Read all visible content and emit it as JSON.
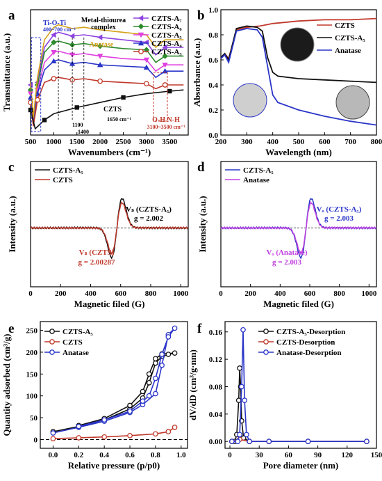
{
  "figure": {
    "panels": [
      "a",
      "b",
      "c",
      "d",
      "e",
      "f"
    ]
  },
  "chart_data": [
    {
      "panel": "a",
      "type": "line",
      "xlabel": "Wavenumbers (cm⁻¹)",
      "ylabel": "Transmittance (a.u.)",
      "xlim": [
        500,
        3900
      ],
      "ylim": [
        0,
        1
      ],
      "xticks": [
        "500",
        "1000",
        "1500",
        "2000",
        "2500",
        "3000",
        "3500"
      ],
      "series": [
        {
          "name": "CZTS-A₇",
          "color": "#8e44e0",
          "marker": "triangle-left",
          "points": [
            [
              500,
              0.4
            ],
            [
              560,
              0.12
            ],
            [
              650,
              0.42
            ],
            [
              800,
              0.7
            ],
            [
              1000,
              0.8
            ],
            [
              1100,
              0.82
            ],
            [
              1400,
              0.79
            ],
            [
              1650,
              0.8
            ],
            [
              2000,
              0.78
            ],
            [
              2500,
              0.76
            ],
            [
              3000,
              0.74
            ],
            [
              3200,
              0.64
            ],
            [
              3400,
              0.7
            ],
            [
              3800,
              0.7
            ]
          ]
        },
        {
          "name": "CZTS-A₆",
          "color": "#2e8b2e",
          "marker": "diamond",
          "points": [
            [
              500,
              0.36
            ],
            [
              560,
              0.1
            ],
            [
              650,
              0.4
            ],
            [
              800,
              0.66
            ],
            [
              1000,
              0.74
            ],
            [
              1100,
              0.75
            ],
            [
              1400,
              0.72
            ],
            [
              1650,
              0.73
            ],
            [
              2000,
              0.71
            ],
            [
              2500,
              0.69
            ],
            [
              3000,
              0.68
            ],
            [
              3200,
              0.58
            ],
            [
              3400,
              0.63
            ],
            [
              3800,
              0.63
            ]
          ]
        },
        {
          "name": "CZTS-A₅",
          "color": "#e040e0",
          "marker": "triangle-down",
          "points": [
            [
              500,
              0.33
            ],
            [
              560,
              0.09
            ],
            [
              650,
              0.36
            ],
            [
              800,
              0.58
            ],
            [
              1000,
              0.66
            ],
            [
              1100,
              0.67
            ],
            [
              1400,
              0.64
            ],
            [
              1650,
              0.65
            ],
            [
              2000,
              0.63
            ],
            [
              2500,
              0.61
            ],
            [
              3000,
              0.6
            ],
            [
              3200,
              0.51
            ],
            [
              3400,
              0.56
            ],
            [
              3800,
              0.56
            ]
          ]
        },
        {
          "name": "CZTS-A₄",
          "color": "#2a35c8",
          "marker": "triangle-up",
          "points": [
            [
              500,
              0.3
            ],
            [
              560,
              0.08
            ],
            [
              650,
              0.33
            ],
            [
              800,
              0.52
            ],
            [
              1000,
              0.59
            ],
            [
              1100,
              0.6
            ],
            [
              1400,
              0.57
            ],
            [
              1650,
              0.58
            ],
            [
              2000,
              0.56
            ],
            [
              2500,
              0.55
            ],
            [
              3000,
              0.54
            ],
            [
              3200,
              0.46
            ],
            [
              3400,
              0.51
            ],
            [
              3800,
              0.51
            ]
          ]
        },
        {
          "name": "CZTS-A₃",
          "color": "#c0392b",
          "marker": "circle",
          "points": [
            [
              500,
              0.26
            ],
            [
              560,
              0.07
            ],
            [
              650,
              0.28
            ],
            [
              800,
              0.42
            ],
            [
              1000,
              0.45
            ],
            [
              1100,
              0.46
            ],
            [
              1400,
              0.44
            ],
            [
              1650,
              0.45
            ],
            [
              2000,
              0.43
            ],
            [
              2500,
              0.42
            ],
            [
              3000,
              0.41
            ],
            [
              3200,
              0.37
            ],
            [
              3400,
              0.4
            ],
            [
              3800,
              0.4
            ]
          ]
        },
        {
          "name": "Anatase",
          "color": "#d4a017",
          "marker": "none",
          "points": [
            [
              500,
              0.42
            ],
            [
              560,
              0.14
            ],
            [
              650,
              0.46
            ],
            [
              800,
              0.76
            ],
            [
              1000,
              0.86
            ],
            [
              1100,
              0.88
            ],
            [
              1400,
              0.85
            ],
            [
              1650,
              0.86
            ],
            [
              2000,
              0.84
            ],
            [
              2500,
              0.82
            ],
            [
              3000,
              0.8
            ],
            [
              3200,
              0.7
            ],
            [
              3400,
              0.76
            ],
            [
              3800,
              0.76
            ]
          ]
        },
        {
          "name": "CZTS",
          "color": "#111111",
          "marker": "square",
          "points": [
            [
              500,
              0.2
            ],
            [
              600,
              0.05
            ],
            [
              800,
              0.12
            ],
            [
              1000,
              0.17
            ],
            [
              1500,
              0.22
            ],
            [
              2000,
              0.26
            ],
            [
              2500,
              0.3
            ],
            [
              3000,
              0.33
            ],
            [
              3500,
              0.35
            ],
            [
              3800,
              0.36
            ]
          ]
        }
      ],
      "annotations": [
        "Ti-O-Ti",
        "400~700 cm⁻¹",
        "Metal-thiourea",
        "complex",
        "Anatase",
        "CZTS",
        "1100",
        "1400",
        "1650 cm⁻¹",
        "O-H N-H",
        "3100~3500 cm⁻¹"
      ]
    },
    {
      "panel": "b",
      "type": "line",
      "xlabel": "Wavelength (nm)",
      "ylabel": "Absorbance (a.u.)",
      "xlim": [
        200,
        800
      ],
      "ylim": [
        0,
        1.0
      ],
      "xticks": [
        "200",
        "300",
        "400",
        "500",
        "600",
        "700",
        "800"
      ],
      "yticks": [
        "0.0",
        "0.2",
        "0.4",
        "0.6",
        "0.8",
        "1.0"
      ],
      "series": [
        {
          "name": "CZTS",
          "color": "#c0392b",
          "points": [
            [
              200,
              0.62
            ],
            [
              215,
              0.65
            ],
            [
              230,
              0.61
            ],
            [
              260,
              0.84
            ],
            [
              300,
              0.86
            ],
            [
              350,
              0.87
            ],
            [
              400,
              0.89
            ],
            [
              500,
              0.91
            ],
            [
              600,
              0.92
            ],
            [
              700,
              0.92
            ],
            [
              800,
              0.93
            ]
          ]
        },
        {
          "name": "CZTS-A₅",
          "color": "#111111",
          "points": [
            [
              200,
              0.62
            ],
            [
              215,
              0.65
            ],
            [
              230,
              0.6
            ],
            [
              260,
              0.85
            ],
            [
              300,
              0.87
            ],
            [
              340,
              0.86
            ],
            [
              360,
              0.83
            ],
            [
              380,
              0.62
            ],
            [
              400,
              0.5
            ],
            [
              420,
              0.47
            ],
            [
              500,
              0.45
            ],
            [
              600,
              0.44
            ],
            [
              700,
              0.43
            ],
            [
              800,
              0.42
            ]
          ]
        },
        {
          "name": "Anatase",
          "color": "#2a35c8",
          "points": [
            [
              200,
              0.61
            ],
            [
              215,
              0.64
            ],
            [
              230,
              0.58
            ],
            [
              260,
              0.83
            ],
            [
              300,
              0.85
            ],
            [
              340,
              0.84
            ],
            [
              360,
              0.78
            ],
            [
              380,
              0.55
            ],
            [
              400,
              0.32
            ],
            [
              420,
              0.26
            ],
            [
              500,
              0.2
            ],
            [
              600,
              0.15
            ],
            [
              700,
              0.11
            ],
            [
              800,
              0.08
            ]
          ]
        }
      ]
    },
    {
      "panel": "c",
      "type": "line",
      "xlabel": "Magnetic filed (G)",
      "ylabel": "Intensity (a.u.)",
      "xlim": [
        0,
        1050
      ],
      "xticks": [
        "0",
        "200",
        "400",
        "600",
        "800",
        "1000"
      ],
      "series": [
        {
          "name": "CZTS-A₅",
          "color": "#111111"
        },
        {
          "name": "CZTS",
          "color": "#c0392b"
        }
      ],
      "annotations": [
        "Vₛ (CZTS-A₅)",
        "g = 2.002",
        "Vₛ (CZTS)",
        "g = 2.00287"
      ]
    },
    {
      "panel": "d",
      "type": "line",
      "xlabel": "Magnetic filed (G)",
      "ylabel": "Intensity (a.u.)",
      "xlim": [
        0,
        1050
      ],
      "xticks": [
        "0",
        "200",
        "400",
        "600",
        "800",
        "1000"
      ],
      "series": [
        {
          "name": "CZTS-A₅",
          "color": "#2a35c8"
        },
        {
          "name": "Anatase",
          "color": "#c040e0"
        }
      ],
      "annotations": [
        "Vₒ (CZTS-A₅)",
        "g = 2.003",
        "Vₒ (Anatase)",
        "g = 2.003"
      ]
    },
    {
      "panel": "e",
      "type": "line",
      "xlabel": "Relative pressure (p/p0)",
      "ylabel": "Quantity adsorbed (cm³/g)",
      "xlim": [
        -0.1,
        1.05
      ],
      "ylim": [
        -20,
        270
      ],
      "xticks": [
        "0.0",
        "0.2",
        "0.4",
        "0.6",
        "0.8",
        "1.0"
      ],
      "yticks": [
        "0",
        "50",
        "100",
        "150",
        "200",
        "250"
      ],
      "series": [
        {
          "name": "CZTS-A₅",
          "color": "#111111",
          "points": [
            [
              0.0,
              18
            ],
            [
              0.2,
              30
            ],
            [
              0.4,
              45
            ],
            [
              0.6,
              70
            ],
            [
              0.7,
              95
            ],
            [
              0.75,
              130
            ],
            [
              0.8,
              175
            ],
            [
              0.85,
              190
            ],
            [
              0.9,
              195
            ],
            [
              0.95,
              198
            ],
            [
              0.85,
              196
            ],
            [
              0.8,
              185
            ],
            [
              0.75,
              150
            ],
            [
              0.7,
              110
            ],
            [
              0.6,
              78
            ],
            [
              0.4,
              48
            ],
            [
              0.2,
              32
            ]
          ]
        },
        {
          "name": "CZTS",
          "color": "#c0392b",
          "points": [
            [
              0.0,
              2
            ],
            [
              0.2,
              4
            ],
            [
              0.4,
              6
            ],
            [
              0.6,
              9
            ],
            [
              0.8,
              13
            ],
            [
              0.9,
              18
            ],
            [
              0.95,
              28
            ]
          ]
        },
        {
          "name": "Anatase",
          "color": "#2a35c8",
          "points": [
            [
              0.0,
              15
            ],
            [
              0.2,
              28
            ],
            [
              0.4,
              42
            ],
            [
              0.6,
              62
            ],
            [
              0.7,
              80
            ],
            [
              0.8,
              105
            ],
            [
              0.85,
              170
            ],
            [
              0.9,
              240
            ],
            [
              0.95,
              255
            ],
            [
              0.9,
              235
            ],
            [
              0.85,
              195
            ],
            [
              0.8,
              140
            ],
            [
              0.75,
              100
            ],
            [
              0.7,
              88
            ],
            [
              0.6,
              65
            ],
            [
              0.4,
              45
            ],
            [
              0.2,
              30
            ]
          ]
        }
      ]
    },
    {
      "panel": "f",
      "type": "line",
      "xlabel": "Pore diameter (nm)",
      "ylabel": "dV/dD (cm³/g·nm)",
      "xlim": [
        -5,
        150
      ],
      "ylim": [
        -0.01,
        0.175
      ],
      "xticks": [
        "0",
        "30",
        "60",
        "90",
        "120",
        "150"
      ],
      "yticks": [
        "0.00",
        "0.04",
        "0.08",
        "0.12",
        "0.16"
      ],
      "series": [
        {
          "name": "CZTS-A₅-Desorption",
          "color": "#111111",
          "points": [
            [
              2,
              0.0
            ],
            [
              5,
              0.0
            ],
            [
              7,
              0.01
            ],
            [
              9,
              0.06
            ],
            [
              10,
              0.107
            ],
            [
              11,
              0.08
            ],
            [
              12,
              0.03
            ],
            [
              14,
              0.005
            ],
            [
              20,
              0.0
            ],
            [
              40,
              0.0
            ],
            [
              80,
              0.0
            ],
            [
              140,
              0.0
            ]
          ]
        },
        {
          "name": "CZTS-Desorption",
          "color": "#c0392b",
          "points": [
            [
              2,
              0.0
            ],
            [
              10,
              0.003
            ],
            [
              20,
              0.0
            ],
            [
              40,
              0.0
            ],
            [
              80,
              0.0
            ],
            [
              140,
              0.0
            ]
          ]
        },
        {
          "name": "Anatase-Desorption",
          "color": "#2a35c8",
          "points": [
            [
              2,
              0.0
            ],
            [
              8,
              0.0
            ],
            [
              10,
              0.01
            ],
            [
              12,
              0.08
            ],
            [
              13.5,
              0.163
            ],
            [
              15,
              0.06
            ],
            [
              17,
              0.01
            ],
            [
              20,
              0.0
            ],
            [
              40,
              0.0
            ],
            [
              80,
              0.0
            ],
            [
              140,
              0.0
            ]
          ]
        }
      ]
    }
  ]
}
